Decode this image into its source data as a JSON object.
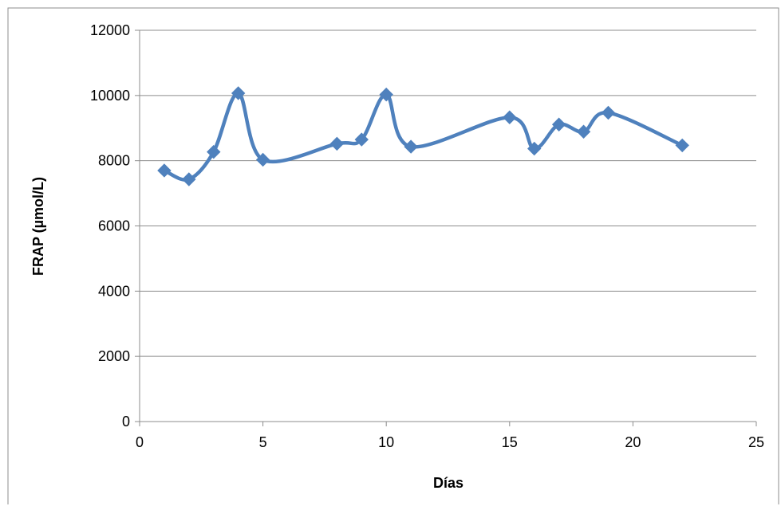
{
  "chart_data": {
    "type": "scatter",
    "title": "",
    "xlabel": "Días",
    "ylabel": "FRAP (µmol/L)",
    "xlim": [
      0,
      25
    ],
    "ylim": [
      0,
      12000
    ],
    "x_ticks": [
      0,
      5,
      10,
      15,
      20,
      25
    ],
    "y_ticks": [
      0,
      2000,
      4000,
      6000,
      8000,
      10000,
      12000
    ],
    "grid": "horizontal major gridlines",
    "legend": "none",
    "line_style": "smoothed",
    "marker": "diamond",
    "series": [
      {
        "color": "#4F81BD",
        "x": [
          1,
          2,
          3,
          4,
          5,
          8,
          9,
          10,
          11,
          15,
          16,
          17,
          18,
          19,
          22
        ],
        "y": [
          7700,
          7430,
          8270,
          10070,
          8030,
          8520,
          8650,
          10030,
          8430,
          9330,
          8370,
          9110,
          8890,
          9470,
          8470
        ]
      }
    ]
  }
}
